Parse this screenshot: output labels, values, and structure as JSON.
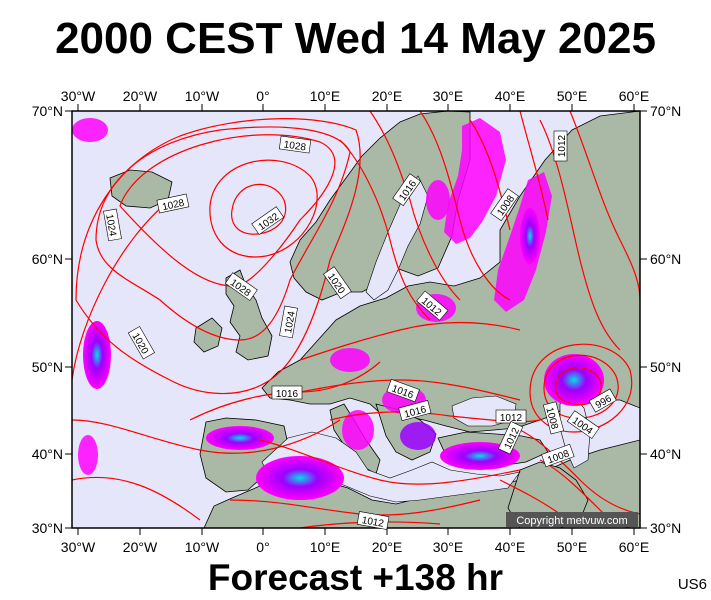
{
  "title": "2000 CEST Wed 14 May 2025",
  "footer": "Forecast +138 hr",
  "model_code": "US6",
  "copyright": "Copyright metvuw.com",
  "lon_labels": [
    "30°W",
    "20°W",
    "10°W",
    "0°",
    "10°E",
    "20°E",
    "30°E",
    "40°E",
    "50°E",
    "60°E"
  ],
  "lat_labels": [
    "70°N",
    "60°N",
    "50°N",
    "40°N",
    "30°N"
  ],
  "isobar_labels": [
    {
      "text": "1028",
      "id": "1028-north-atlantic"
    },
    {
      "text": "1028",
      "id": "1028-iceland"
    },
    {
      "text": "1032",
      "id": "1032-high-centre"
    },
    {
      "text": "1024",
      "id": "1024-west"
    },
    {
      "text": "1028",
      "id": "1028-ireland"
    },
    {
      "text": "1024",
      "id": "1024-uk"
    },
    {
      "text": "1020",
      "id": "1020-atlantic"
    },
    {
      "text": "1020",
      "id": "1020-north-sea"
    },
    {
      "text": "1016",
      "id": "1016-finland"
    },
    {
      "text": "1008",
      "id": "1008-russia"
    },
    {
      "text": "1012",
      "id": "1012-arctic"
    },
    {
      "text": "1012",
      "id": "1012-central-europe"
    },
    {
      "text": "1016",
      "id": "1016-bay-of-biscay"
    },
    {
      "text": "1016",
      "id": "1016-balkans"
    },
    {
      "text": "1016",
      "id": "1016-greece"
    },
    {
      "text": "1012",
      "id": "1012-turkey"
    },
    {
      "text": "1012",
      "id": "1012-levant"
    },
    {
      "text": "1008",
      "id": "1008-caspian"
    },
    {
      "text": "1008",
      "id": "1008-caucasus"
    },
    {
      "text": "1004",
      "id": "1004-kazakhstan"
    },
    {
      "text": "996",
      "id": "996-low-centre"
    },
    {
      "text": "1012",
      "id": "1012-libya"
    }
  ],
  "colors": {
    "ocean": "#e6e6fa",
    "land": "#aab9a5",
    "isobar": "#ff0000",
    "precip_light": "#ff00ff",
    "precip_medium": "#9c00ff",
    "precip_heavy": "#00e0e8"
  }
}
